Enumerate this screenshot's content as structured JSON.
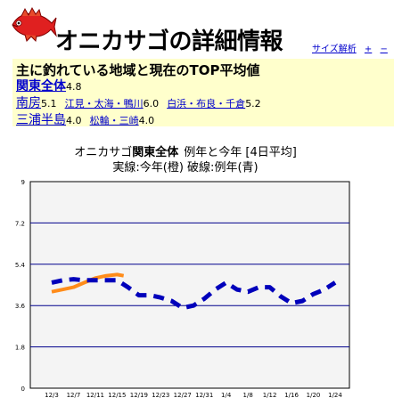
{
  "header": {
    "title": "オニカサゴの詳細情報",
    "links": [
      "サイズ解析",
      "+",
      "−"
    ],
    "fish_icon": "fish-icon"
  },
  "summary": {
    "heading": "主に釣れている地域と現在のTOP平均値",
    "region": {
      "name": "関東全体",
      "value": "4.8"
    },
    "area1": {
      "name": "南房",
      "value": "5.1",
      "subs": [
        {
          "name": "江見・太海・鴨川",
          "value": "6.0"
        },
        {
          "name": "白浜・布良・千倉",
          "value": "5.2"
        }
      ]
    },
    "area2": {
      "name": "三浦半島",
      "value": "4.0",
      "subs": [
        {
          "name": "松輪・三崎",
          "value": "4.0"
        }
      ]
    }
  },
  "chart_data": {
    "type": "line",
    "title_prefix": "オニカサゴ",
    "title_region": "関東全体",
    "title_suffix": "例年と今年 [4日平均]",
    "subtitle": "実線:今年(橙) 破線:例年(青)",
    "ylim": [
      0,
      9
    ],
    "yticks": [
      "0",
      "1.8",
      "3.6",
      "5.4",
      "7.2",
      "9"
    ],
    "categories": [
      "12/3",
      "12/7",
      "12/11",
      "12/15",
      "12/19",
      "12/23",
      "12/27",
      "12/31",
      "1/4",
      "1/8",
      "1/12",
      "1/16",
      "1/20",
      "1/24"
    ],
    "series": [
      {
        "style": "solid",
        "color": "#ff8c1a",
        "x": [
          0,
          0.5,
          1,
          1.5,
          2,
          2.5,
          3,
          3.3
        ],
        "values": [
          4.2,
          4.3,
          4.4,
          4.6,
          4.8,
          4.9,
          4.95,
          4.9
        ]
      },
      {
        "style": "dashed",
        "color": "#0000bb",
        "x": [
          0,
          0.5,
          1,
          1.5,
          2,
          2.5,
          3,
          3.5,
          4,
          4.5,
          5,
          5.5,
          6,
          6.5,
          7,
          7.5,
          8,
          8.5,
          9,
          9.5,
          10,
          10.5,
          11,
          11.5,
          12,
          12.5,
          13
        ],
        "values": [
          4.6,
          4.7,
          4.75,
          4.7,
          4.7,
          4.7,
          4.7,
          4.4,
          4.05,
          4.05,
          3.95,
          3.8,
          3.5,
          3.6,
          3.9,
          4.3,
          4.6,
          4.3,
          4.2,
          4.4,
          4.4,
          4.0,
          3.7,
          3.8,
          4.1,
          4.3,
          4.6
        ]
      }
    ],
    "colors": {
      "grid": "#00008b",
      "background": "#f4f4f4"
    }
  }
}
